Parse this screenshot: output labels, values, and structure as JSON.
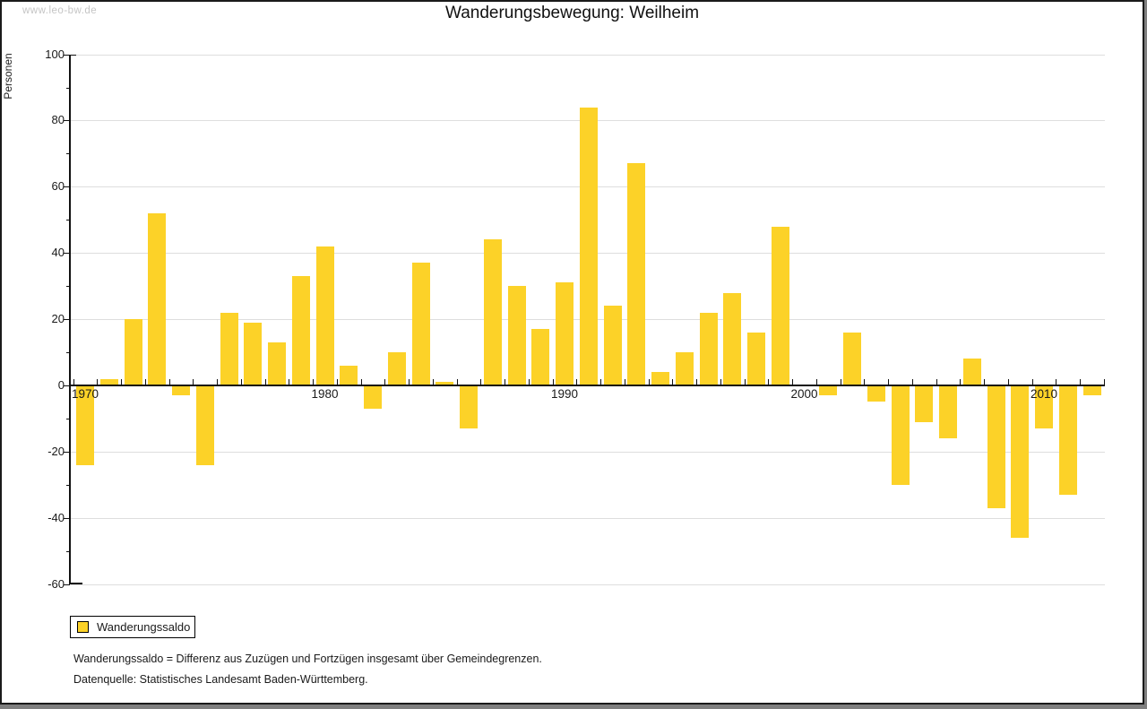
{
  "page": {
    "watermark": "www.leo-bw.de"
  },
  "chart_data": {
    "type": "bar",
    "title": "Wanderungsbewegung: Weilheim",
    "ylabel": "Personen",
    "xlabel": "",
    "ylim": [
      -60,
      100
    ],
    "ytick_step": 20,
    "ytick_minor_step": 10,
    "grid": "horizontal",
    "legend_position": "bottom-left",
    "series_name": "Wanderungssaldo",
    "bar_color": "#FCD228",
    "grid_color": "#DEDEDE",
    "axis_color": "#111111",
    "x_tick_labels": [
      "1970",
      "1980",
      "1990",
      "2000",
      "2010"
    ],
    "years": [
      1970,
      1971,
      1972,
      1973,
      1974,
      1975,
      1976,
      1977,
      1978,
      1979,
      1980,
      1981,
      1982,
      1983,
      1984,
      1985,
      1986,
      1987,
      1988,
      1989,
      1990,
      1991,
      1992,
      1993,
      1994,
      1995,
      1996,
      1997,
      1998,
      1999,
      2000,
      2001,
      2002,
      2003,
      2004,
      2005,
      2006,
      2007,
      2008,
      2009,
      2010,
      2011,
      2012
    ],
    "values": [
      -24,
      2,
      20,
      52,
      -3,
      -24,
      22,
      19,
      13,
      33,
      42,
      6,
      -7,
      10,
      37,
      1,
      -13,
      44,
      30,
      17,
      31,
      84,
      24,
      67,
      4,
      10,
      22,
      28,
      16,
      48,
      0,
      -3,
      16,
      -5,
      -30,
      -11,
      -16,
      8,
      -37,
      -46,
      -13,
      -33,
      -3
    ]
  },
  "legend": {
    "label": "Wanderungssaldo"
  },
  "footnotes": [
    "Wanderungssaldo = Differenz aus Zuzügen und Fortzügen insgesamt über Gemeindegrenzen.",
    "Datenquelle: Statistisches Landesamt Baden-Württemberg."
  ]
}
